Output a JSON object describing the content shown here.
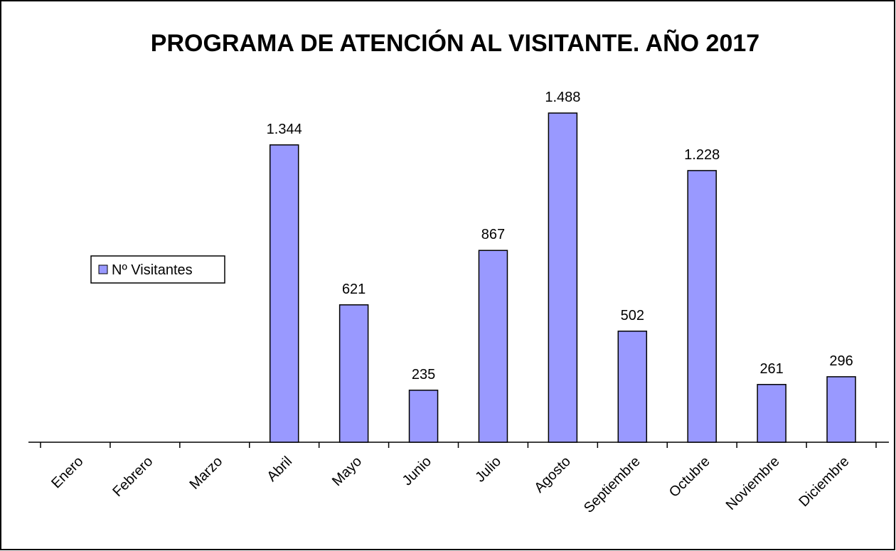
{
  "chart_data": {
    "type": "bar",
    "title": "PROGRAMA DE ATENCIÓN AL VISITANTE. AÑO 2017",
    "categories": [
      "Enero",
      "Febrero",
      "Marzo",
      "Abril",
      "Mayo",
      "Junio",
      "Julio",
      "Agosto",
      "Septiembre",
      "Octubre",
      "Noviembre",
      "Diciembre"
    ],
    "series": [
      {
        "name": "Nº Visitantes",
        "color": "#9999ff",
        "values": [
          null,
          null,
          null,
          1344,
          621,
          235,
          867,
          1488,
          502,
          1228,
          261,
          296
        ],
        "value_labels": [
          null,
          null,
          null,
          "1.344",
          "621",
          "235",
          "867",
          "1.488",
          "502",
          "1.228",
          "261",
          "296"
        ]
      }
    ],
    "legend": "left"
  }
}
